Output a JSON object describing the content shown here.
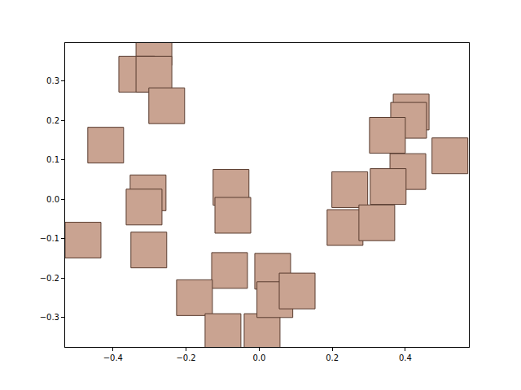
{
  "chart_data": {
    "type": "scatter",
    "marker": "square",
    "color": "#c9a391",
    "grid": false,
    "x": [
      -0.288,
      -0.335,
      -0.288,
      -0.253,
      -0.42,
      -0.304,
      -0.315,
      -0.482,
      -0.302,
      -0.077,
      -0.072,
      -0.081,
      -0.177,
      -0.099,
      0.008,
      0.037,
      0.043,
      0.104,
      0.416,
      0.409,
      0.351,
      0.522,
      0.407,
      0.248,
      0.353,
      0.235,
      0.322
    ],
    "values": [
      0.385,
      0.317,
      0.317,
      0.237,
      0.137,
      0.016,
      -0.02,
      -0.104,
      -0.129,
      0.03,
      -0.041,
      -0.181,
      -0.25,
      -0.336,
      -0.336,
      -0.183,
      -0.255,
      -0.233,
      0.221,
      0.2,
      0.162,
      0.11,
      0.07,
      0.024,
      0.032,
      -0.072,
      -0.06
    ],
    "xlim": [
      -0.531,
      0.574
    ],
    "xticks": [
      {
        "value": -0.4,
        "label": "−0.4"
      },
      {
        "value": -0.2,
        "label": "−0.2"
      },
      {
        "value": 0,
        "label": "0.0"
      },
      {
        "value": 0.2,
        "label": "0.2"
      },
      {
        "value": 0.4,
        "label": "0.4"
      }
    ],
    "ylim": [
      -0.375,
      0.396
    ],
    "yticks": [
      {
        "value": -0.3,
        "label": "−0.3"
      },
      {
        "value": -0.2,
        "label": "−0.2"
      },
      {
        "value": -0.1,
        "label": "−0.1"
      },
      {
        "value": 0,
        "label": "0.0"
      },
      {
        "value": 0.1,
        "label": "0.1"
      },
      {
        "value": 0.2,
        "label": "0.2"
      },
      {
        "value": 0.3,
        "label": "0.3"
      }
    ]
  }
}
